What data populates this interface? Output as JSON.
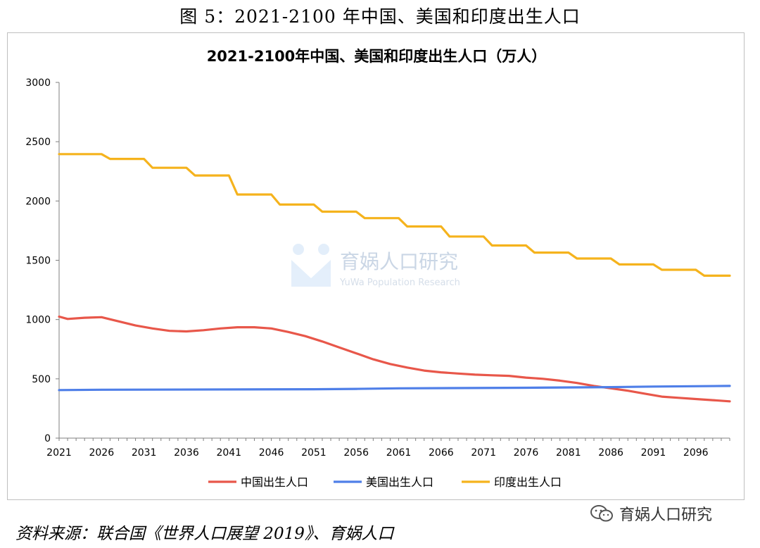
{
  "figure_title": "图 5：2021-2100 年中国、美国和印度出生人口",
  "source_note": "资料来源：联合国《世界人口展望 2019》、育娲人口",
  "wechat_label": "育娲人口研究",
  "watermark": {
    "name": "育娲人口研究",
    "sub": "YuWa Population Research"
  },
  "chart_data": {
    "type": "line",
    "title": "2021-2100年中国、美国和印度出生人口（万人）",
    "xlabel": "",
    "ylabel": "",
    "ylim": [
      0,
      3000
    ],
    "yticks": [
      0,
      500,
      1000,
      1500,
      2000,
      2500,
      3000
    ],
    "xlim": [
      2021,
      2100
    ],
    "xticks": [
      2021,
      2026,
      2031,
      2036,
      2041,
      2046,
      2051,
      2056,
      2061,
      2066,
      2071,
      2076,
      2081,
      2086,
      2091,
      2096
    ],
    "grid": false,
    "legend_position": "bottom",
    "series": [
      {
        "name": "中国出生人口",
        "color": "#e8574a",
        "x": [
          2021,
          2022,
          2024,
          2026,
          2028,
          2030,
          2032,
          2034,
          2036,
          2038,
          2040,
          2042,
          2044,
          2046,
          2048,
          2050,
          2052,
          2054,
          2056,
          2058,
          2060,
          2062,
          2064,
          2066,
          2068,
          2070,
          2072,
          2074,
          2076,
          2078,
          2080,
          2082,
          2084,
          2086,
          2088,
          2090,
          2092,
          2094,
          2096,
          2098,
          2100
        ],
        "values": [
          1025,
          1005,
          1015,
          1020,
          985,
          950,
          925,
          905,
          900,
          910,
          925,
          935,
          935,
          925,
          895,
          860,
          815,
          765,
          715,
          665,
          625,
          595,
          570,
          555,
          545,
          535,
          530,
          525,
          510,
          500,
          485,
          465,
          440,
          420,
          400,
          375,
          350,
          340,
          330,
          320,
          310
        ]
      },
      {
        "name": "美国出生人口",
        "color": "#4f7fe8",
        "x": [
          2021,
          2026,
          2051,
          2056,
          2061,
          2076,
          2086,
          2091,
          2100
        ],
        "values": [
          405,
          408,
          412,
          415,
          420,
          425,
          430,
          435,
          440
        ]
      },
      {
        "name": "印度出生人口",
        "color": "#f5b31d",
        "x": [
          2021,
          2026,
          2027,
          2031,
          2032,
          2036,
          2037,
          2041,
          2042,
          2046,
          2047,
          2051,
          2052,
          2056,
          2057,
          2061,
          2062,
          2066,
          2067,
          2071,
          2072,
          2076,
          2077,
          2081,
          2082,
          2086,
          2087,
          2091,
          2092,
          2096,
          2097,
          2100
        ],
        "values": [
          2395,
          2395,
          2355,
          2355,
          2280,
          2280,
          2215,
          2215,
          2055,
          2055,
          1970,
          1970,
          1910,
          1910,
          1855,
          1855,
          1785,
          1785,
          1700,
          1700,
          1625,
          1625,
          1565,
          1565,
          1515,
          1515,
          1465,
          1465,
          1420,
          1420,
          1370,
          1370
        ]
      }
    ]
  }
}
